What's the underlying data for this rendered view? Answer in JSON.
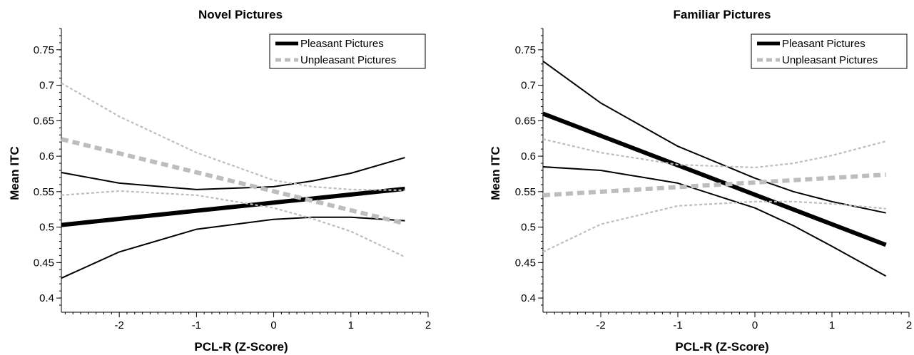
{
  "chart_data": [
    {
      "type": "line",
      "title": "Novel Pictures",
      "xlabel": "PCL-R (Z-Score)",
      "ylabel": "Mean ITC",
      "xlim": [
        -2.75,
        2.0
      ],
      "ylim": [
        0.38,
        0.78
      ],
      "xticks": [
        "-2",
        "-1",
        "0",
        "1",
        "2"
      ],
      "yticks": [
        "0.4",
        "0.45",
        "0.5",
        "0.55",
        "0.6",
        "0.65",
        "0.7",
        "0.75"
      ],
      "grid": false,
      "legend_position": "top-right",
      "legend": [
        "Pleasant Pictures",
        "Unpleasant Pictures"
      ],
      "series": [
        {
          "name": "Pleasant Pictures",
          "color": "#000000",
          "style": "solid",
          "x": [
            -2.75,
            1.7
          ],
          "y": [
            0.503,
            0.554
          ],
          "ci_lower": {
            "x": [
              -2.75,
              -2,
              -1,
              0,
              0.5,
              1,
              1.7
            ],
            "y": [
              0.428,
              0.465,
              0.497,
              0.511,
              0.514,
              0.514,
              0.509
            ]
          },
          "ci_upper": {
            "x": [
              -2.75,
              -2,
              -1,
              0,
              0.5,
              1,
              1.7
            ],
            "y": [
              0.577,
              0.562,
              0.553,
              0.557,
              0.565,
              0.576,
              0.598
            ]
          }
        },
        {
          "name": "Unpleasant Pictures",
          "color": "#bdbdbd",
          "style": "dashed",
          "x": [
            -2.75,
            1.7
          ],
          "y": [
            0.624,
            0.505
          ],
          "ci_lower": {
            "x": [
              -2.75,
              -2,
              -1,
              0,
              0.5,
              1,
              1.7
            ],
            "y": [
              0.545,
              0.551,
              0.545,
              0.527,
              0.512,
              0.494,
              0.458
            ]
          },
          "ci_upper": {
            "x": [
              -2.75,
              -2,
              -1,
              0,
              0.5,
              1,
              1.7
            ],
            "y": [
              0.703,
              0.656,
              0.605,
              0.566,
              0.557,
              0.553,
              0.552
            ]
          }
        }
      ]
    },
    {
      "type": "line",
      "title": "Familiar Pictures",
      "xlabel": "PCL-R (Z-Score)",
      "ylabel": "Mean ITC",
      "xlim": [
        -2.75,
        2.0
      ],
      "ylim": [
        0.38,
        0.78
      ],
      "xticks": [
        "-2",
        "-1",
        "0",
        "1",
        "2"
      ],
      "yticks": [
        "0.4",
        "0.45",
        "0.5",
        "0.55",
        "0.6",
        "0.65",
        "0.7",
        "0.75"
      ],
      "grid": false,
      "legend_position": "top-right",
      "legend": [
        "Pleasant Pictures",
        "Unpleasant Pictures"
      ],
      "series": [
        {
          "name": "Pleasant Pictures",
          "color": "#000000",
          "style": "solid",
          "x": [
            -2.75,
            1.7
          ],
          "y": [
            0.66,
            0.475
          ],
          "ci_lower": {
            "x": [
              -2.75,
              -2,
              -1,
              0,
              0.5,
              1,
              1.7
            ],
            "y": [
              0.585,
              0.58,
              0.562,
              0.527,
              0.502,
              0.473,
              0.431
            ]
          },
          "ci_upper": {
            "x": [
              -2.75,
              -2,
              -1,
              0,
              0.5,
              1,
              1.7
            ],
            "y": [
              0.734,
              0.675,
              0.614,
              0.569,
              0.55,
              0.536,
              0.52
            ]
          }
        },
        {
          "name": "Unpleasant Pictures",
          "color": "#bdbdbd",
          "style": "dashed",
          "x": [
            -2.75,
            1.7
          ],
          "y": [
            0.545,
            0.574
          ],
          "ci_lower": {
            "x": [
              -2.75,
              -2,
              -1,
              0,
              0.5,
              1,
              1.7
            ],
            "y": [
              0.465,
              0.504,
              0.53,
              0.536,
              0.536,
              0.533,
              0.526
            ]
          },
          "ci_upper": {
            "x": [
              -2.75,
              -2,
              -1,
              0,
              0.5,
              1,
              1.7
            ],
            "y": [
              0.624,
              0.605,
              0.588,
              0.584,
              0.59,
              0.601,
              0.621
            ]
          }
        }
      ]
    }
  ]
}
